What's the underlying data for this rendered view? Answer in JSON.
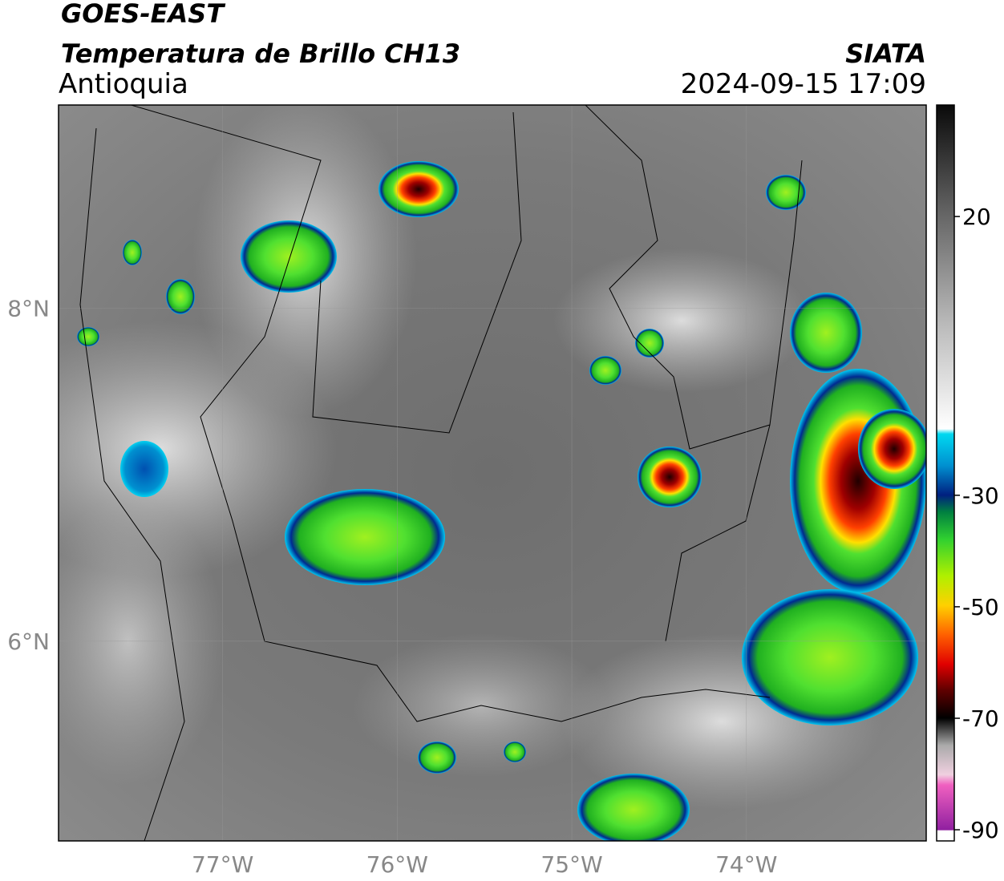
{
  "header": {
    "satellite": "GOES-EAST",
    "product": "Temperatura de Brillo CH13",
    "region": "Antioquia",
    "agency": "SIATA",
    "timestamp": "2024-09-15 17:09"
  },
  "map": {
    "xlim": [
      -77.94,
      -72.97
    ],
    "ylim": [
      4.8,
      9.22
    ],
    "xticks": [
      {
        "value": -77,
        "label": "77°W"
      },
      {
        "value": -76,
        "label": "76°W"
      },
      {
        "value": -75,
        "label": "75°W"
      },
      {
        "value": -74,
        "label": "74°W"
      }
    ],
    "yticks": [
      {
        "value": 8,
        "label": "8°N"
      },
      {
        "value": 6,
        "label": "6°N"
      }
    ],
    "grid": true
  },
  "colorbar": {
    "lim": [
      -92,
      40
    ],
    "ticks": [
      20,
      -30,
      -50,
      -70,
      -90
    ]
  }
}
